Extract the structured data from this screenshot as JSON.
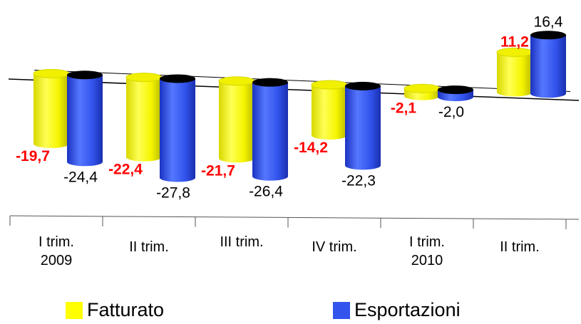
{
  "chart_data": {
    "type": "bar",
    "title": "",
    "xlabel": "",
    "ylabel": "",
    "ylim": [
      -30,
      18
    ],
    "grid": false,
    "legend_position": "bottom",
    "categories": [
      [
        "I trim.",
        "2009"
      ],
      [
        "II trim."
      ],
      [
        "III trim."
      ],
      [
        "IV trim."
      ],
      [
        "I trim.",
        "2010"
      ],
      [
        "II trim."
      ]
    ],
    "series": [
      {
        "name": "Fatturato",
        "color": "#ffff00",
        "label_color": "#ff0000",
        "values": [
          -19.7,
          -22.4,
          -21.7,
          -14.2,
          -2.1,
          11.2
        ],
        "labels": [
          "-19,7",
          "-22,4",
          "-21,7",
          "-14,2",
          "-2,1",
          "11,2"
        ]
      },
      {
        "name": "Esportazioni",
        "color": "#3355ee",
        "label_color": "#000000",
        "values": [
          -24.4,
          -27.8,
          -26.4,
          -22.3,
          -2.0,
          16.4
        ],
        "labels": [
          "-24,4",
          "-27,8",
          "-26,4",
          "-22,3",
          "-2,0",
          "16,4"
        ]
      }
    ]
  }
}
